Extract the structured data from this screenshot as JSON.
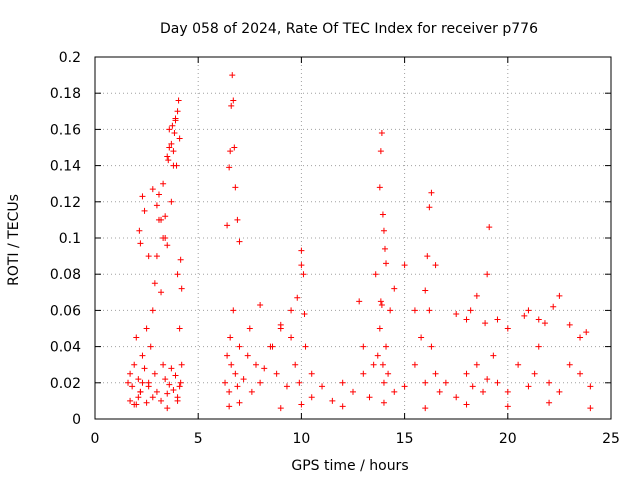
{
  "chart_data": {
    "type": "scatter",
    "title": "Day 058 of 2024, Rate Of TEC Index for receiver p776",
    "xlabel": "GPS time / hours",
    "ylabel": "ROTI / TECUs",
    "xlim": [
      0,
      25
    ],
    "ylim": [
      0,
      0.2
    ],
    "xticks": [
      0,
      5,
      10,
      15,
      20,
      25
    ],
    "xtick_labels": [
      "0",
      "5",
      "10",
      "15",
      "20",
      "25"
    ],
    "yticks": [
      0,
      0.02,
      0.04,
      0.06,
      0.08,
      0.1,
      0.12,
      0.14,
      0.16,
      0.18,
      0.2
    ],
    "ytick_labels": [
      "0",
      "0.02",
      "0.04",
      "0.06",
      "0.08",
      "0.1",
      "0.12",
      "0.14",
      "0.16",
      "0.18",
      "0.2"
    ],
    "grid": true,
    "marker": "+",
    "series": [
      {
        "name": "ROTI",
        "color": "#ff0000",
        "x": [
          1.6,
          1.7,
          1.8,
          1.9,
          2.0,
          2.1,
          2.2,
          2.3,
          2.4,
          2.5,
          2.6,
          2.7,
          2.8,
          2.9,
          3.0,
          3.1,
          3.2,
          3.3,
          3.4,
          3.5,
          3.6,
          3.7,
          3.8,
          3.9,
          4.0,
          4.1,
          4.2,
          1.7,
          1.9,
          2.1,
          2.2,
          2.3,
          2.5,
          2.6,
          2.8,
          2.9,
          3.0,
          3.2,
          3.3,
          3.4,
          3.5,
          3.6,
          3.7,
          3.8,
          3.9,
          4.0,
          4.1,
          4.15,
          2.15,
          2.2,
          2.3,
          2.4,
          2.6,
          2.8,
          3.0,
          3.1,
          3.2,
          3.3,
          3.4,
          3.5,
          3.55,
          3.6,
          3.7,
          3.75,
          3.8,
          3.85,
          3.9,
          3.95,
          4.0,
          4.05,
          4.1,
          4.15,
          4.2,
          6.3,
          6.4,
          6.5,
          6.55,
          6.6,
          6.7,
          6.8,
          6.9,
          7.0,
          7.2,
          7.4,
          7.6,
          7.8,
          8.0,
          8.2,
          8.5,
          8.8,
          9.0,
          9.3,
          9.5,
          9.7,
          9.9,
          10.0,
          10.2,
          10.5,
          6.4,
          6.5,
          6.55,
          6.6,
          6.65,
          6.7,
          6.75,
          6.8,
          6.9,
          7.0,
          7.5,
          8.0,
          8.6,
          9.0,
          9.5,
          9.8,
          10.0,
          10.1,
          10.15,
          10.5,
          11.0,
          11.5,
          12.0,
          12.5,
          13.0,
          13.3,
          13.5,
          13.7,
          13.8,
          13.85,
          13.9,
          13.95,
          14.0,
          14.1,
          14.2,
          14.5,
          15.0,
          15.5,
          16.0,
          16.2,
          16.3,
          16.5,
          12.8,
          13.0,
          13.6,
          13.8,
          13.85,
          13.9,
          13.95,
          14.0,
          14.05,
          14.1,
          14.3,
          14.5,
          15.0,
          15.5,
          15.8,
          16.0,
          16.1,
          16.2,
          16.3,
          16.5,
          16.7,
          17.0,
          17.5,
          18.0,
          18.3,
          18.5,
          18.8,
          19.0,
          19.3,
          19.5,
          20.0,
          20.5,
          21.0,
          21.3,
          21.5,
          22.0,
          22.5,
          23.0,
          23.5,
          24.0,
          17.5,
          18.0,
          18.2,
          18.5,
          18.9,
          19.0,
          19.1,
          19.5,
          20.0,
          20.8,
          21.0,
          21.5,
          21.8,
          22.2,
          22.5,
          23.0,
          23.5,
          23.8,
          2.0,
          3.5,
          4.0,
          6.5,
          7.0,
          9.0,
          10.0,
          12.0,
          14.0,
          16.0,
          18.0,
          20.0,
          22.0,
          24.0
        ],
        "y": [
          0.02,
          0.025,
          0.018,
          0.03,
          0.045,
          0.022,
          0.015,
          0.035,
          0.028,
          0.05,
          0.02,
          0.04,
          0.06,
          0.075,
          0.09,
          0.11,
          0.07,
          0.13,
          0.1,
          0.145,
          0.16,
          0.12,
          0.14,
          0.165,
          0.08,
          0.05,
          0.03,
          0.01,
          0.008,
          0.012,
          0.015,
          0.02,
          0.009,
          0.018,
          0.012,
          0.025,
          0.015,
          0.01,
          0.03,
          0.022,
          0.014,
          0.019,
          0.028,
          0.016,
          0.024,
          0.012,
          0.018,
          0.02,
          0.104,
          0.097,
          0.123,
          0.115,
          0.09,
          0.127,
          0.118,
          0.124,
          0.11,
          0.1,
          0.112,
          0.096,
          0.143,
          0.15,
          0.152,
          0.162,
          0.148,
          0.158,
          0.166,
          0.14,
          0.17,
          0.176,
          0.155,
          0.088,
          0.072,
          0.02,
          0.035,
          0.015,
          0.045,
          0.03,
          0.06,
          0.025,
          0.018,
          0.04,
          0.022,
          0.035,
          0.015,
          0.03,
          0.02,
          0.028,
          0.04,
          0.025,
          0.05,
          0.018,
          0.06,
          0.03,
          0.02,
          0.085,
          0.04,
          0.025,
          0.107,
          0.139,
          0.148,
          0.173,
          0.19,
          0.176,
          0.15,
          0.128,
          0.11,
          0.098,
          0.05,
          0.063,
          0.04,
          0.052,
          0.045,
          0.067,
          0.093,
          0.08,
          0.058,
          0.012,
          0.018,
          0.01,
          0.02,
          0.015,
          0.025,
          0.012,
          0.03,
          0.035,
          0.05,
          0.065,
          0.063,
          0.03,
          0.02,
          0.04,
          0.025,
          0.015,
          0.018,
          0.03,
          0.02,
          0.06,
          0.04,
          0.025,
          0.065,
          0.04,
          0.08,
          0.128,
          0.148,
          0.158,
          0.113,
          0.104,
          0.094,
          0.086,
          0.06,
          0.072,
          0.085,
          0.06,
          0.045,
          0.071,
          0.09,
          0.117,
          0.125,
          0.085,
          0.015,
          0.02,
          0.012,
          0.025,
          0.018,
          0.03,
          0.015,
          0.022,
          0.035,
          0.02,
          0.015,
          0.03,
          0.018,
          0.025,
          0.04,
          0.02,
          0.015,
          0.03,
          0.025,
          0.018,
          0.058,
          0.055,
          0.06,
          0.068,
          0.053,
          0.08,
          0.106,
          0.055,
          0.05,
          0.057,
          0.06,
          0.055,
          0.053,
          0.062,
          0.068,
          0.052,
          0.045,
          0.048,
          0.008,
          0.006,
          0.01,
          0.007,
          0.009,
          0.006,
          0.008,
          0.007,
          0.009,
          0.006,
          0.008,
          0.007,
          0.009,
          0.006
        ]
      }
    ]
  }
}
